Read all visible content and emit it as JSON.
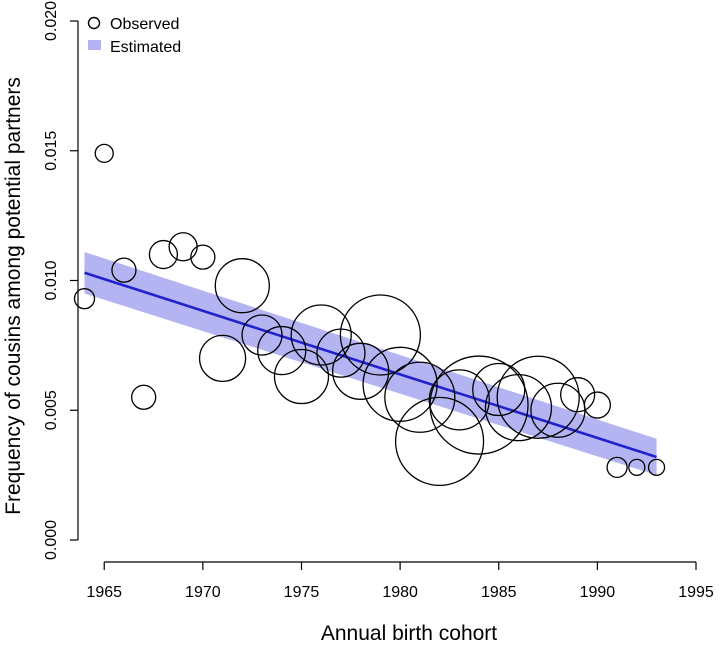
{
  "chart_data": {
    "type": "scatter",
    "xlabel": "Annual birth cohort",
    "ylabel": "Frequency of cousins among potential partners",
    "xlim": [
      1964,
      1995
    ],
    "ylim": [
      0,
      0.02
    ],
    "x_ticks": [
      1965,
      1970,
      1975,
      1980,
      1985,
      1990,
      1995
    ],
    "y_ticks": [
      0.0,
      0.005,
      0.01,
      0.015,
      0.02
    ],
    "x_tick_labels": [
      "1965",
      "1970",
      "1975",
      "1980",
      "1985",
      "1990",
      "1995"
    ],
    "y_tick_labels": [
      "0.000",
      "0.005",
      "0.010",
      "0.015",
      "0.020"
    ],
    "legend": {
      "placement": "top-left",
      "entries": [
        {
          "label": "Observed",
          "symbol": "open-circle"
        },
        {
          "label": "Estimated",
          "symbol": "shaded-band"
        }
      ]
    },
    "colors": {
      "observed": "#000000",
      "fit_line": "#2222cc",
      "band": "#b4b4f2"
    },
    "observed": [
      {
        "x": 1964,
        "y": 0.0093,
        "size": 1.0
      },
      {
        "x": 1965,
        "y": 0.0149,
        "size": 0.9
      },
      {
        "x": 1966,
        "y": 0.0104,
        "size": 1.2
      },
      {
        "x": 1967,
        "y": 0.0055,
        "size": 1.2
      },
      {
        "x": 1968,
        "y": 0.011,
        "size": 1.4
      },
      {
        "x": 1969,
        "y": 0.0113,
        "size": 1.4
      },
      {
        "x": 1970,
        "y": 0.0109,
        "size": 1.2
      },
      {
        "x": 1971,
        "y": 0.007,
        "size": 2.3
      },
      {
        "x": 1972,
        "y": 0.0098,
        "size": 2.7
      },
      {
        "x": 1973,
        "y": 0.0079,
        "size": 2.0
      },
      {
        "x": 1974,
        "y": 0.0073,
        "size": 2.4
      },
      {
        "x": 1975,
        "y": 0.0063,
        "size": 2.7
      },
      {
        "x": 1976,
        "y": 0.0079,
        "size": 3.0
      },
      {
        "x": 1977,
        "y": 0.0072,
        "size": 2.4
      },
      {
        "x": 1978,
        "y": 0.0065,
        "size": 2.8
      },
      {
        "x": 1979,
        "y": 0.0079,
        "size": 4.0
      },
      {
        "x": 1980,
        "y": 0.006,
        "size": 3.7
      },
      {
        "x": 1981,
        "y": 0.0055,
        "size": 3.5
      },
      {
        "x": 1982,
        "y": 0.0038,
        "size": 4.4
      },
      {
        "x": 1983,
        "y": 0.0054,
        "size": 3.0
      },
      {
        "x": 1984,
        "y": 0.0052,
        "size": 4.9
      },
      {
        "x": 1985,
        "y": 0.0058,
        "size": 2.6
      },
      {
        "x": 1986,
        "y": 0.0051,
        "size": 3.3
      },
      {
        "x": 1987,
        "y": 0.0055,
        "size": 4.1
      },
      {
        "x": 1988,
        "y": 0.005,
        "size": 2.7
      },
      {
        "x": 1989,
        "y": 0.0056,
        "size": 1.7
      },
      {
        "x": 1990,
        "y": 0.0052,
        "size": 1.3
      },
      {
        "x": 1991,
        "y": 0.0028,
        "size": 1.0
      },
      {
        "x": 1992,
        "y": 0.0028,
        "size": 0.8
      },
      {
        "x": 1993,
        "y": 0.0028,
        "size": 0.8
      }
    ],
    "fit": {
      "x": [
        1964,
        1993
      ],
      "y": [
        0.0103,
        0.0032
      ],
      "band_lower": [
        0.0095,
        0.0025
      ],
      "band_upper": [
        0.0111,
        0.0039
      ]
    }
  }
}
